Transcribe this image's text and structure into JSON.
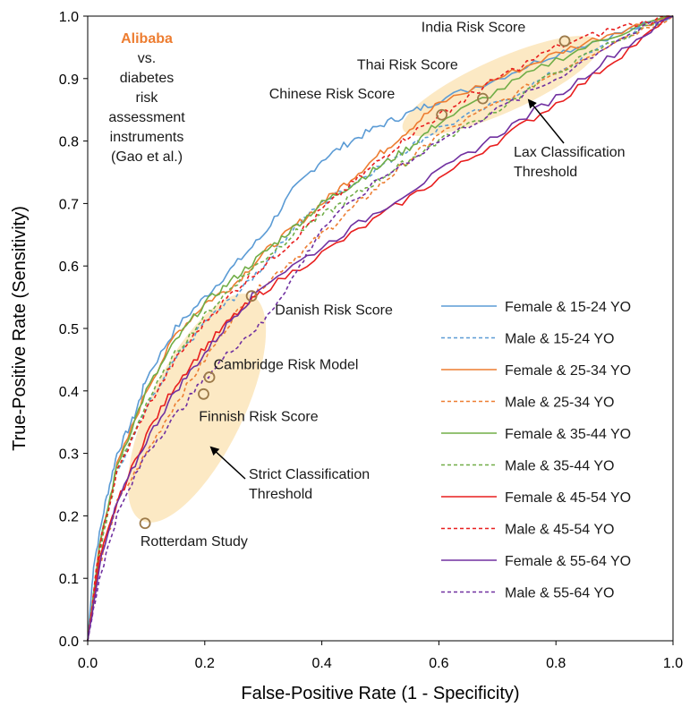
{
  "chart_data": {
    "type": "line",
    "xlabel": "False-Positive Rate (1 - Specificity)",
    "ylabel": "True-Positive Rate (Sensitivity)",
    "xlim": [
      0,
      1
    ],
    "ylim": [
      0,
      1
    ],
    "x_ticks": [
      "0.0",
      "0.2",
      "0.4",
      "0.6",
      "0.8",
      "1.0"
    ],
    "y_ticks": [
      "0.0",
      "0.1",
      "0.2",
      "0.3",
      "0.4",
      "0.5",
      "0.6",
      "0.7",
      "0.8",
      "0.9",
      "1.0"
    ],
    "grid": false,
    "legend_position": "bottom-right",
    "side_note": {
      "brand": "Alibaba",
      "brand_color": "#ED7D31",
      "lines": [
        "vs.",
        "diabetes",
        "risk",
        "assessment",
        "instruments",
        "(Gao et al.)"
      ]
    },
    "series": [
      {
        "name": "Female & 15-24 YO",
        "color": "#5B9BD5",
        "dash": "solid",
        "x": [
          0,
          0.01,
          0.03,
          0.05,
          0.08,
          0.1,
          0.15,
          0.2,
          0.25,
          0.3,
          0.35,
          0.4,
          0.45,
          0.5,
          0.55,
          0.6,
          0.7,
          0.8,
          0.9,
          1.0
        ],
        "y": [
          0,
          0.12,
          0.22,
          0.3,
          0.36,
          0.42,
          0.5,
          0.55,
          0.6,
          0.65,
          0.72,
          0.77,
          0.8,
          0.825,
          0.845,
          0.865,
          0.9,
          0.94,
          0.97,
          1.0
        ]
      },
      {
        "name": "Male & 15-24 YO",
        "color": "#5B9BD5",
        "dash": "dashed",
        "x": [
          0,
          0.02,
          0.05,
          0.1,
          0.15,
          0.2,
          0.25,
          0.3,
          0.35,
          0.4,
          0.45,
          0.5,
          0.55,
          0.6,
          0.7,
          0.8,
          0.9,
          1.0
        ],
        "y": [
          0,
          0.15,
          0.27,
          0.37,
          0.45,
          0.51,
          0.55,
          0.6,
          0.66,
          0.7,
          0.73,
          0.76,
          0.79,
          0.82,
          0.86,
          0.91,
          0.96,
          1.0
        ]
      },
      {
        "name": "Female & 25-34 YO",
        "color": "#ED7D31",
        "dash": "solid",
        "x": [
          0,
          0.02,
          0.05,
          0.1,
          0.15,
          0.2,
          0.25,
          0.3,
          0.35,
          0.4,
          0.45,
          0.5,
          0.55,
          0.6,
          0.7,
          0.8,
          0.9,
          1.0
        ],
        "y": [
          0,
          0.15,
          0.28,
          0.4,
          0.49,
          0.54,
          0.57,
          0.62,
          0.66,
          0.7,
          0.74,
          0.78,
          0.82,
          0.86,
          0.9,
          0.94,
          0.975,
          1.0
        ]
      },
      {
        "name": "Male & 25-34 YO",
        "color": "#ED7D31",
        "dash": "dashed",
        "x": [
          0,
          0.02,
          0.05,
          0.1,
          0.15,
          0.2,
          0.25,
          0.3,
          0.35,
          0.4,
          0.45,
          0.5,
          0.55,
          0.6,
          0.7,
          0.8,
          0.9,
          1.0
        ],
        "y": [
          0,
          0.12,
          0.22,
          0.3,
          0.38,
          0.45,
          0.52,
          0.57,
          0.61,
          0.65,
          0.69,
          0.73,
          0.77,
          0.81,
          0.86,
          0.91,
          0.96,
          1.0
        ]
      },
      {
        "name": "Female & 35-44 YO",
        "color": "#70AD47",
        "dash": "solid",
        "x": [
          0,
          0.02,
          0.05,
          0.1,
          0.15,
          0.2,
          0.25,
          0.3,
          0.35,
          0.4,
          0.45,
          0.5,
          0.55,
          0.6,
          0.7,
          0.8,
          0.9,
          1.0
        ],
        "y": [
          0,
          0.15,
          0.28,
          0.4,
          0.48,
          0.54,
          0.58,
          0.62,
          0.66,
          0.7,
          0.73,
          0.76,
          0.79,
          0.83,
          0.88,
          0.93,
          0.97,
          1.0
        ]
      },
      {
        "name": "Male & 35-44 YO",
        "color": "#70AD47",
        "dash": "dashed",
        "x": [
          0,
          0.02,
          0.05,
          0.1,
          0.15,
          0.2,
          0.25,
          0.3,
          0.35,
          0.4,
          0.45,
          0.5,
          0.55,
          0.6,
          0.7,
          0.8,
          0.9,
          1.0
        ],
        "y": [
          0,
          0.14,
          0.27,
          0.38,
          0.46,
          0.52,
          0.57,
          0.61,
          0.65,
          0.68,
          0.71,
          0.74,
          0.77,
          0.8,
          0.85,
          0.91,
          0.96,
          1.0
        ]
      },
      {
        "name": "Female & 45-54 YO",
        "color": "#E81E1E",
        "dash": "solid",
        "x": [
          0,
          0.02,
          0.05,
          0.1,
          0.15,
          0.2,
          0.25,
          0.3,
          0.4,
          0.5,
          0.6,
          0.7,
          0.8,
          0.9,
          1.0
        ],
        "y": [
          0,
          0.13,
          0.22,
          0.33,
          0.41,
          0.47,
          0.52,
          0.56,
          0.62,
          0.68,
          0.74,
          0.8,
          0.86,
          0.93,
          1.0
        ]
      },
      {
        "name": "Male & 45-54 YO",
        "color": "#E81E1E",
        "dash": "dashed",
        "x": [
          0,
          0.02,
          0.05,
          0.1,
          0.15,
          0.2,
          0.25,
          0.3,
          0.35,
          0.4,
          0.45,
          0.5,
          0.55,
          0.6,
          0.65,
          0.7,
          0.8,
          0.9,
          1.0
        ],
        "y": [
          0,
          0.15,
          0.27,
          0.37,
          0.45,
          0.51,
          0.56,
          0.6,
          0.64,
          0.69,
          0.73,
          0.77,
          0.81,
          0.84,
          0.87,
          0.9,
          0.95,
          0.98,
          1.0
        ]
      },
      {
        "name": "Female & 55-64 YO",
        "color": "#7030A0",
        "dash": "solid",
        "x": [
          0,
          0.02,
          0.05,
          0.1,
          0.15,
          0.2,
          0.25,
          0.3,
          0.4,
          0.5,
          0.6,
          0.7,
          0.8,
          0.9,
          1.0
        ],
        "y": [
          0,
          0.12,
          0.22,
          0.32,
          0.4,
          0.46,
          0.52,
          0.57,
          0.63,
          0.69,
          0.75,
          0.81,
          0.87,
          0.94,
          1.0
        ]
      },
      {
        "name": "Male & 55-64 YO",
        "color": "#7030A0",
        "dash": "dashed",
        "x": [
          0,
          0.02,
          0.05,
          0.1,
          0.15,
          0.2,
          0.25,
          0.3,
          0.35,
          0.4,
          0.5,
          0.6,
          0.7,
          0.8,
          0.9,
          1.0
        ],
        "y": [
          0,
          0.1,
          0.2,
          0.3,
          0.36,
          0.42,
          0.47,
          0.51,
          0.58,
          0.66,
          0.74,
          0.8,
          0.85,
          0.9,
          0.96,
          1.0
        ]
      }
    ],
    "markers": [
      {
        "label": "India Risk Score",
        "x": 0.815,
        "y": 0.96,
        "label_x": 0.57,
        "label_y": 0.975
      },
      {
        "label": "Thai Risk Score",
        "x": 0.675,
        "y": 0.868,
        "label_x": 0.46,
        "label_y": 0.915
      },
      {
        "label": "Chinese Risk Score",
        "x": 0.605,
        "y": 0.842,
        "label_x": 0.31,
        "label_y": 0.868
      },
      {
        "label": "Danish Risk Score",
        "x": 0.28,
        "y": 0.552,
        "label_x": 0.32,
        "label_y": 0.522
      },
      {
        "label": "Cambridge Risk Model",
        "x": 0.208,
        "y": 0.422,
        "label_x": 0.215,
        "label_y": 0.435
      },
      {
        "label": "Finnish Risk Score",
        "x": 0.198,
        "y": 0.395,
        "label_x": 0.19,
        "label_y": 0.352
      },
      {
        "label": "Rotterdam Study",
        "x": 0.098,
        "y": 0.188,
        "label_x": 0.09,
        "label_y": 0.152
      }
    ],
    "threshold_notes": [
      {
        "lines": [
          "Lax Classification",
          "Threshold"
        ],
        "text_x": 0.73,
        "text_y": 0.79,
        "arrow_from": [
          0.75,
          0.825
        ],
        "arrow_to": [
          0.75,
          0.828
        ],
        "tip": [
          0.75,
          0.86
        ]
      },
      {
        "lines": [
          "Strict Classification",
          "Threshold"
        ],
        "text_x": 0.28,
        "text_y": 0.265,
        "arrow_from": [
          0.28,
          0.262
        ],
        "arrow_to": [
          0.21,
          0.31
        ],
        "tip": [
          0.21,
          0.31
        ]
      }
    ]
  }
}
